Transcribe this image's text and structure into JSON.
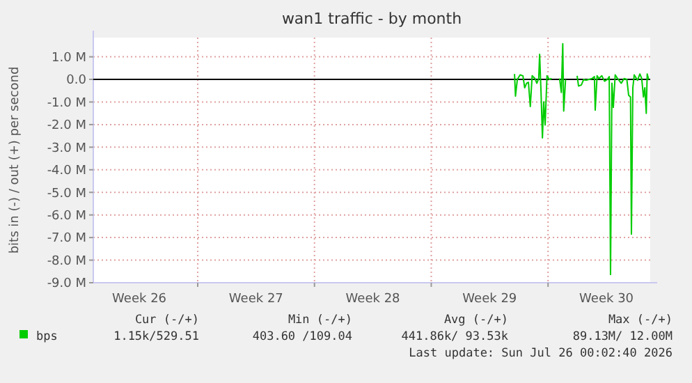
{
  "chart_data": {
    "type": "line",
    "title": "wan1 traffic - by month",
    "ylabel": "bits in (-) / out (+) per second",
    "xlim": [
      "2026-06-22T17:48",
      "2026-07-26T03:00"
    ],
    "ylim": [
      -9.0,
      1.85
    ],
    "xticks": [
      {
        "value": "2026-06-25T12:00",
        "label": "Week 26"
      },
      {
        "value": "2026-06-29",
        "label": null
      },
      {
        "value": "2026-07-02T12:00",
        "label": "Week 27"
      },
      {
        "value": "2026-07-06",
        "label": null
      },
      {
        "value": "2026-07-09T12:00",
        "label": "Week 28"
      },
      {
        "value": "2026-07-13",
        "label": null
      },
      {
        "value": "2026-07-16T12:00",
        "label": "Week 29"
      },
      {
        "value": "2026-07-20",
        "label": null
      },
      {
        "value": "2026-07-23T12:00",
        "label": "Week 30"
      }
    ],
    "yticks": [
      {
        "value": 1,
        "label": "1.0 M"
      },
      {
        "value": 0,
        "label": "0.0"
      },
      {
        "value": -1,
        "label": "-1.0 M"
      },
      {
        "value": -2,
        "label": "-2.0 M"
      },
      {
        "value": -3,
        "label": "-3.0 M"
      },
      {
        "value": -4,
        "label": "-4.0 M"
      },
      {
        "value": -5,
        "label": "-5.0 M"
      },
      {
        "value": -6,
        "label": "-6.0 M"
      },
      {
        "value": -7,
        "label": "-7.0 M"
      },
      {
        "value": -8,
        "label": "-8.0 M"
      },
      {
        "value": -9,
        "label": "-9.0 M"
      }
    ],
    "grid": true,
    "legend": "bottom left",
    "line_style": "solid",
    "ref_lines": [
      {
        "axis": "y",
        "value": 0,
        "color": "#000000"
      }
    ],
    "series": [
      {
        "name": "bps",
        "color": "#00cc00",
        "x": [
          "2026-07-17T23:47",
          "2026-07-18T01:08",
          "2026-07-18T03:49",
          "2026-07-18T07:51",
          "2026-07-18T11:53",
          "2026-07-18T14:24",
          "2026-07-18T17:05",
          "2026-07-18T19:47",
          "2026-07-18T22:28",
          "2026-07-19T01:09",
          "2026-07-19T05:11",
          "2026-07-19T07:52",
          "2026-07-19T10:34",
          "2026-07-19T11:54",
          "2026-07-19T13:55",
          "2026-07-19T15:56",
          "2026-07-19T17:47",
          "2026-07-19T19:48",
          "2026-07-19T22:29",
          "2026-07-20T01:51",
          "2026-07-20T05:13",
          "2026-07-20T06:43",
          "2026-07-20T08:34",
          "2026-07-20T10:05",
          "2026-07-20T16:38",
          "2026-07-20T19:09",
          "2026-07-20T21:10",
          "2026-07-20T22:31",
          "2026-07-21T01:12",
          "2026-07-21T09:16",
          "2026-07-21T17:50",
          "2026-07-21T19:51",
          "2026-07-21T23:53",
          "2026-07-22T03:14",
          "2026-07-22T06:36",
          "2026-07-22T15:20",
          "2026-07-22T18:42",
          "2026-07-22T19:52",
          "2026-07-22T22:34",
          "2026-07-23T01:15",
          "2026-07-23T05:17",
          "2026-07-23T09:19",
          "2026-07-23T13:20",
          "2026-07-23T16:02",
          "2026-07-23T17:53",
          "2026-07-23T19:54",
          "2026-07-23T21:55",
          "2026-07-24T00:36",
          "2026-07-24T03:58",
          "2026-07-24T09:20",
          "2026-07-24T13:22",
          "2026-07-24T17:24",
          "2026-07-24T19:55",
          "2026-07-24T22:37",
          "2026-07-24T23:57",
          "2026-07-25T01:58",
          "2026-07-25T03:59",
          "2026-07-25T08:41",
          "2026-07-25T12:03",
          "2026-07-25T14:44",
          "2026-07-25T17:16",
          "2026-07-25T19:16",
          "2026-07-25T21:17",
          "2026-07-25T22:38",
          "2026-07-26T00:39"
        ],
        "values": [
          0.24,
          -0.74,
          0.0,
          0.2,
          0.16,
          -0.37,
          -0.17,
          -0.13,
          -1.2,
          0.16,
          0.04,
          -0.17,
          0.04,
          1.11,
          -0.58,
          -2.59,
          -0.99,
          -2.02,
          0.16,
          0.0,
          0.04,
          null,
          -0.08,
          null,
          0.04,
          -0.58,
          1.58,
          -1.4,
          0.0,
          null,
          0.16,
          -0.29,
          -0.25,
          0.0,
          -0.04,
          0.04,
          0.12,
          -1.36,
          0.16,
          0.04,
          0.16,
          -0.08,
          0.0,
          0.12,
          -8.64,
          -0.17,
          -1.24,
          0.2,
          0.04,
          -0.17,
          0.04,
          0.0,
          -0.7,
          -0.78,
          -6.85,
          -0.37,
          0.2,
          -0.04,
          0.24,
          0.04,
          -0.78,
          -0.37,
          -1.5,
          0.24,
          0.0
        ]
      }
    ],
    "annotations": [
      "Cur (-/+)",
      "Min (-/+)",
      "Avg (-/+)",
      "Max (-/+)",
      "1.15k/529.51",
      "403.60 /109.04",
      "441.86k/ 93.53k",
      "89.13M/ 12.00M",
      "Last update: Sun Jul 26 00:02:40 2026"
    ]
  }
}
